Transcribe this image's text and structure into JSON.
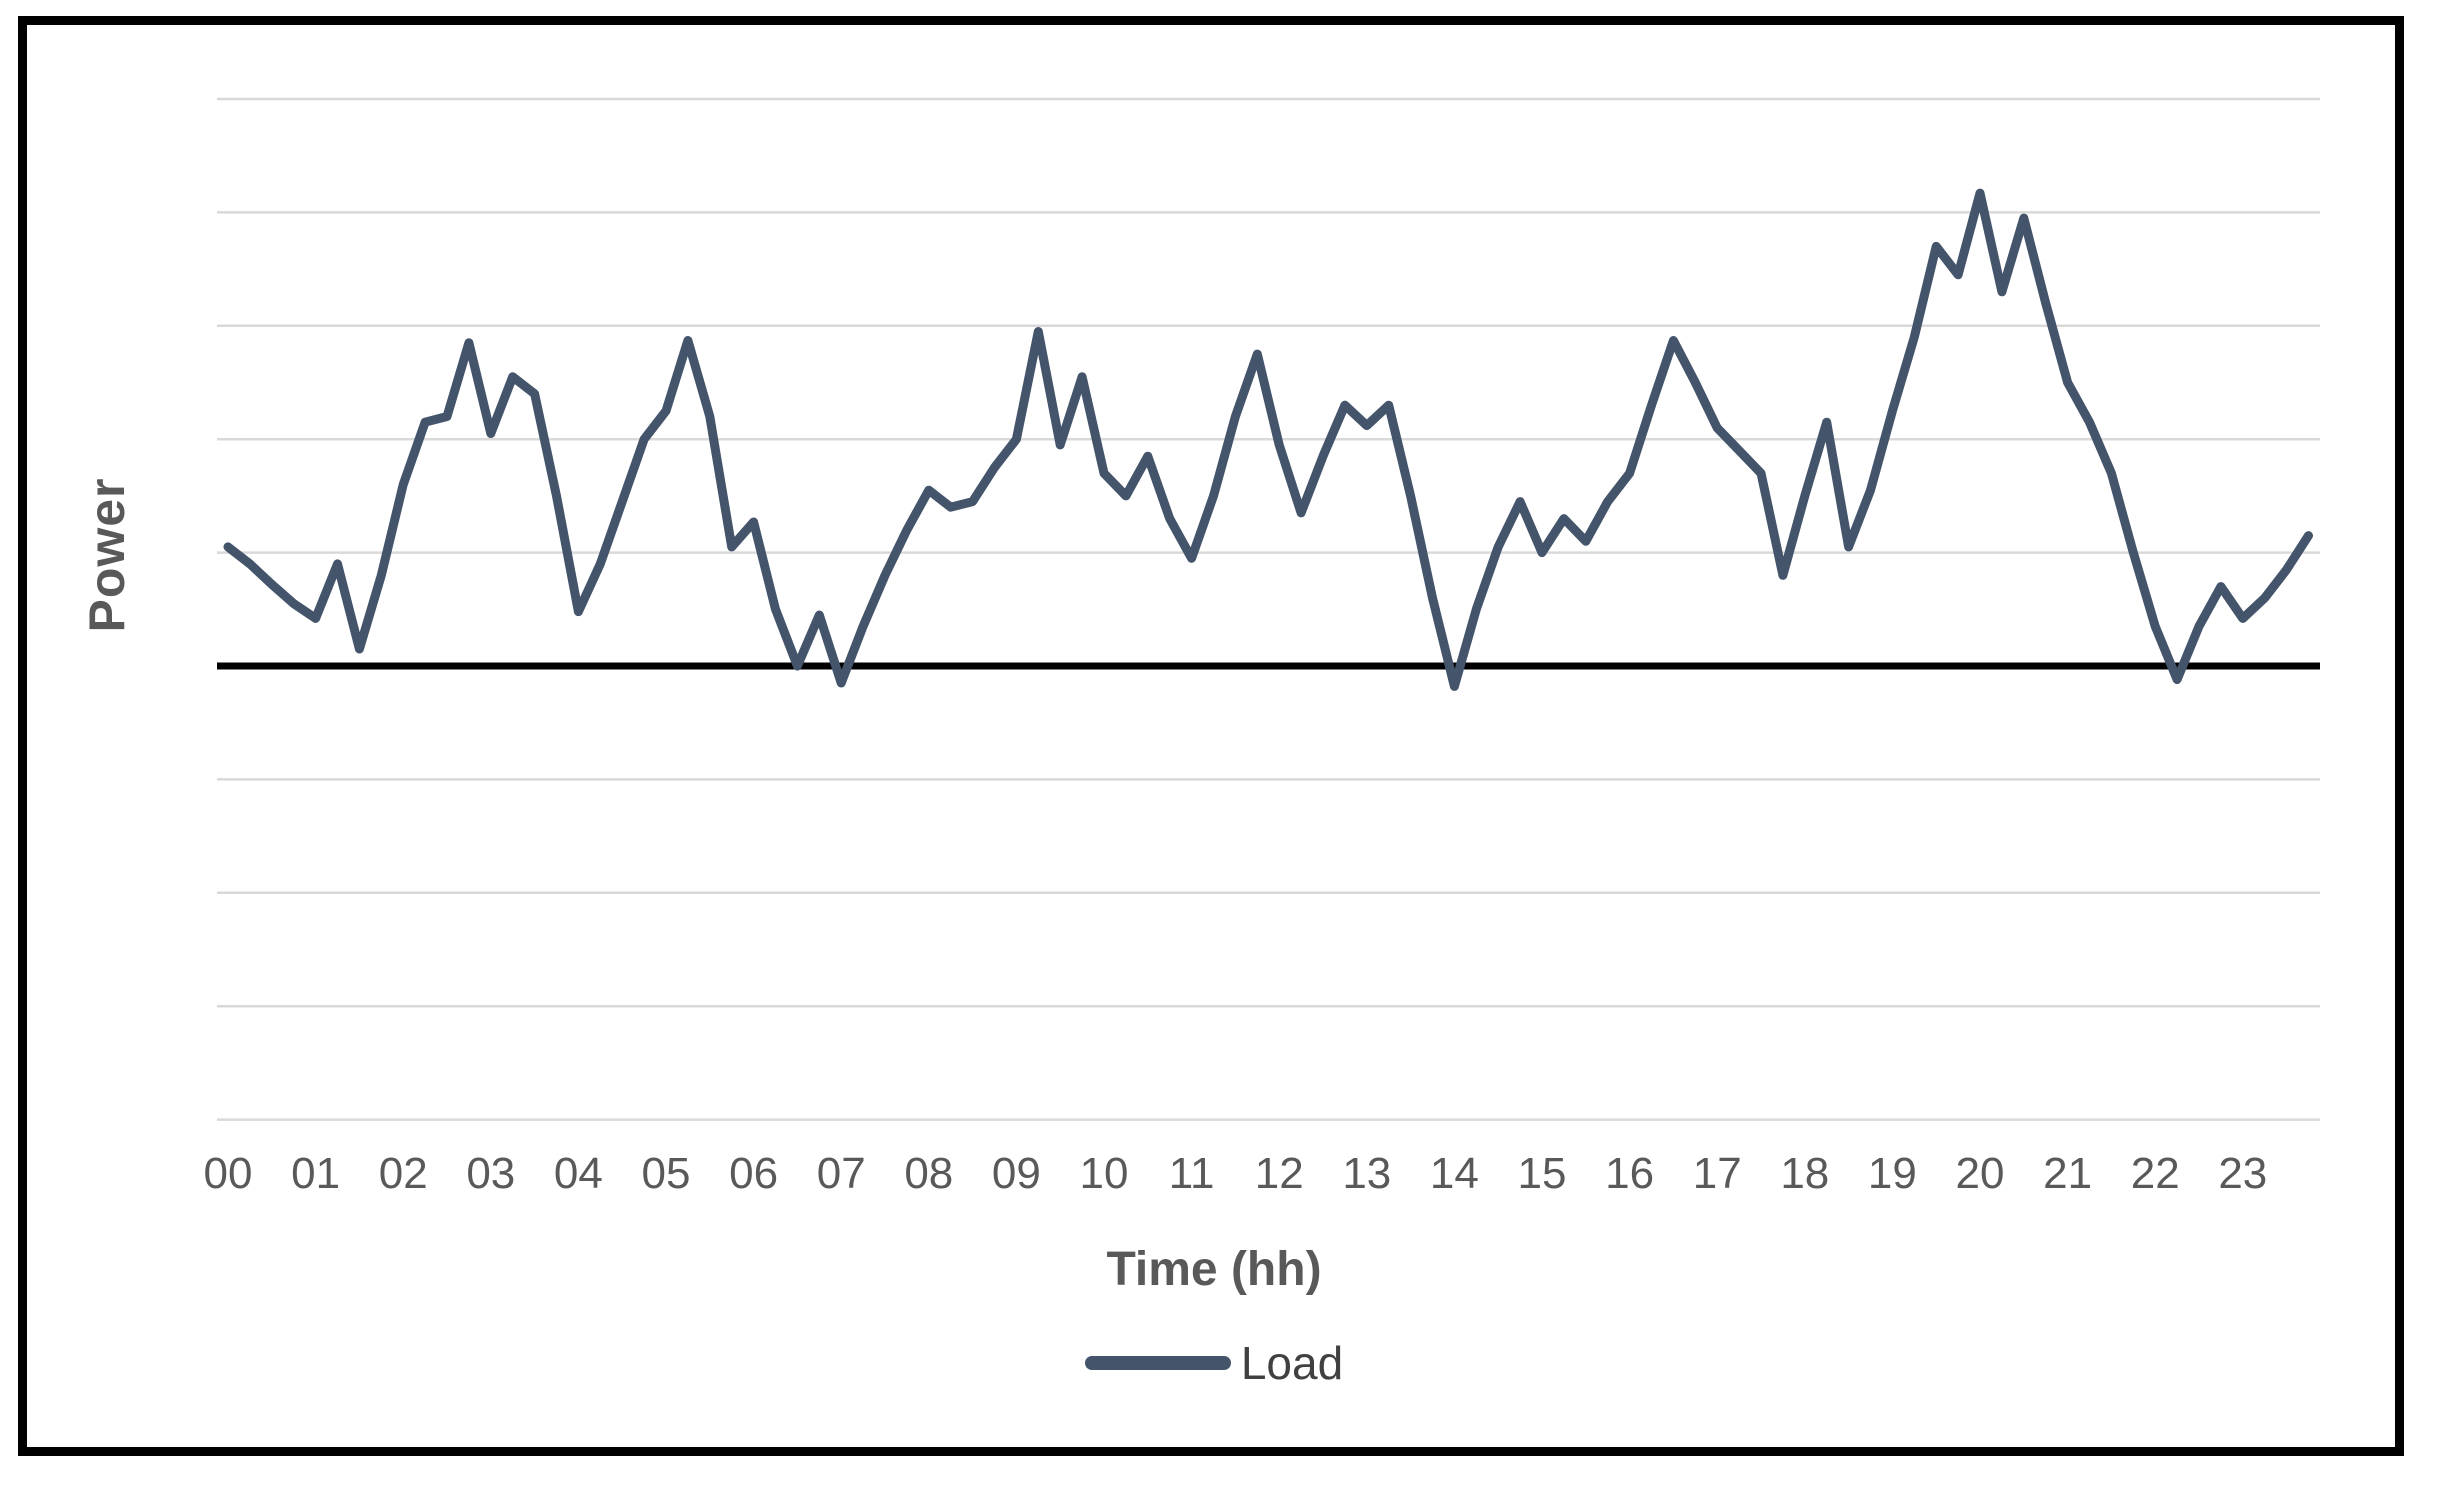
{
  "chart_data": {
    "type": "line",
    "title": "",
    "xlabel": "Time (hh)",
    "ylabel": "Power",
    "x_labels": [
      "00",
      "01",
      "02",
      "03",
      "04",
      "05",
      "06",
      "07",
      "08",
      "09",
      "10",
      "11",
      "12",
      "13",
      "14",
      "15",
      "16",
      "17",
      "18",
      "19",
      "20",
      "21",
      "22",
      "23"
    ],
    "points_per_hour": 4,
    "sampling": "15-minute intervals",
    "series": [
      {
        "name": "Load",
        "color": "#44546A",
        "values": [
          1.05,
          0.9,
          0.72,
          0.55,
          0.42,
          0.9,
          0.15,
          0.8,
          1.6,
          2.15,
          2.2,
          2.85,
          2.05,
          2.55,
          2.4,
          1.5,
          0.48,
          0.9,
          1.45,
          2.0,
          2.25,
          2.87,
          2.2,
          1.05,
          1.27,
          0.5,
          0.0,
          0.45,
          -0.15,
          0.35,
          0.8,
          1.2,
          1.55,
          1.4,
          1.45,
          1.75,
          2.0,
          2.95,
          1.95,
          2.55,
          1.7,
          1.5,
          1.85,
          1.3,
          0.95,
          1.5,
          2.2,
          2.75,
          1.95,
          1.35,
          1.85,
          2.3,
          2.12,
          2.3,
          1.5,
          0.6,
          -0.18,
          0.5,
          1.05,
          1.45,
          1.0,
          1.3,
          1.1,
          1.45,
          1.7,
          2.3,
          2.87,
          2.5,
          2.1,
          1.9,
          1.7,
          0.8,
          1.5,
          2.15,
          1.05,
          1.55,
          2.25,
          2.9,
          3.7,
          3.45,
          4.17,
          3.3,
          3.95,
          3.2,
          2.5,
          2.15,
          1.7,
          1.0,
          0.35,
          -0.12,
          0.35,
          0.7,
          0.42,
          0.6,
          0.85,
          1.15
        ]
      }
    ],
    "ylim": [
      -4,
      5
    ],
    "gridline_interval": 1,
    "y_tick_labels_shown": false,
    "grid": "horizontal-only",
    "gridline_color": "#D9D9D9",
    "zero_axis_line": true,
    "zero_axis_color": "#000000",
    "tick_label_color": "#595959",
    "legend_position": "bottom-center"
  },
  "legend": {
    "load_label": "Load"
  },
  "axes": {
    "y_title": "Power",
    "x_title": "Time (hh)"
  }
}
